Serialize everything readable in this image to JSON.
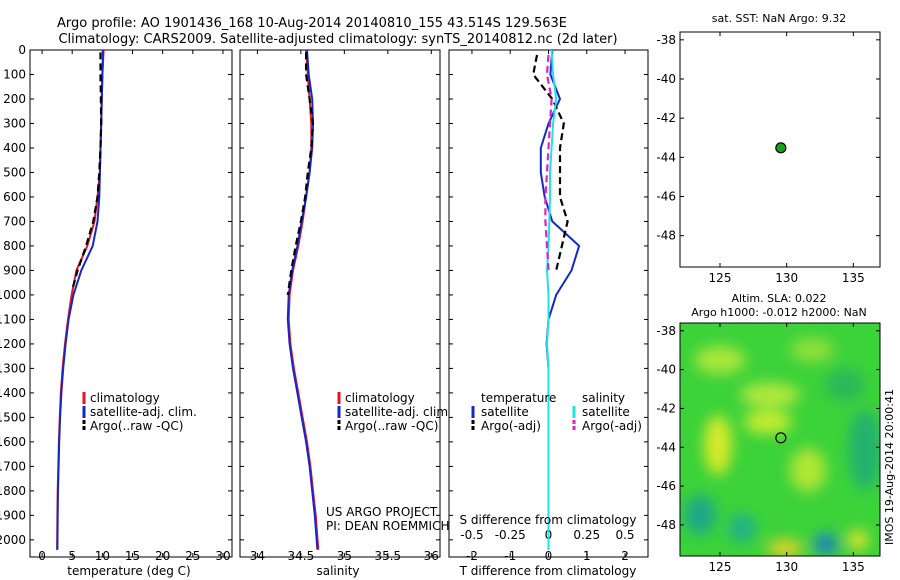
{
  "title_line1": "Argo profile: AO 1901436_168 10-Aug-2014 20140810_155 43.514S 129.563E",
  "title_line2": "Climatology: CARS2009. Satellite-adjusted climatology: synTS_20140812.nc (2d later)",
  "project_line1": "US ARGO PROJECT",
  "project_line2": "PI: DEAN ROEMMICH",
  "sst_title": "sat. SST: NaN Argo: 9.32",
  "sla_title_line1": "Altim. SLA: 0.022",
  "sla_title_line2": "Argo h1000: -0.012 h2000: NaN",
  "imos_stamp": "IMOS 19-Aug-2014 20:00:41",
  "colors": {
    "climatology": "#e8141c",
    "satellite": "#1428c8",
    "argo": "#000000",
    "sal_satellite": "#22e0e6",
    "sal_argo": "#e020d0",
    "float_marker": "#1aa01a"
  },
  "chart_data": [
    {
      "type": "line",
      "name": "temperature profile",
      "xlabel": "temperature (deg C)",
      "ylabel": "",
      "xlim": [
        -2,
        31.5
      ],
      "ylim": [
        0,
        2070
      ],
      "y_reversed": true,
      "x_ticks": [
        0,
        5,
        10,
        15,
        20,
        25,
        30
      ],
      "y_ticks": [
        0,
        100,
        200,
        300,
        400,
        500,
        600,
        700,
        800,
        900,
        1000,
        1100,
        1200,
        1300,
        1400,
        1500,
        1600,
        1700,
        1800,
        1900,
        2000
      ],
      "legend": [
        "climatology",
        "satellite-adj. clim.",
        "Argo(..raw -QC)"
      ],
      "legend_position": "lower-middle",
      "series": [
        {
          "name": "climatology",
          "color_key": "climatology",
          "dash": "solid",
          "x": [
            10.2,
            10.0,
            9.9,
            9.8,
            9.7,
            9.6,
            9.2,
            8.7,
            7.5,
            5.7,
            4.9,
            4.3,
            3.8,
            3.4,
            3.1,
            2.95,
            2.8,
            2.7,
            2.6,
            2.55,
            2.5
          ],
          "y": [
            0,
            100,
            200,
            300,
            400,
            500,
            600,
            700,
            800,
            900,
            1000,
            1100,
            1200,
            1300,
            1400,
            1500,
            1600,
            1700,
            1800,
            1900,
            2040
          ]
        },
        {
          "name": "satellite-adj. clim.",
          "color_key": "satellite",
          "dash": "solid",
          "x": [
            10.1,
            10.0,
            9.9,
            9.8,
            9.7,
            9.6,
            9.5,
            9.2,
            8.4,
            6.5,
            5.2,
            4.4,
            3.9,
            3.5,
            3.2,
            3.0,
            2.85,
            2.75,
            2.65,
            2.6,
            2.55
          ],
          "y": [
            0,
            100,
            200,
            300,
            400,
            500,
            600,
            700,
            800,
            900,
            1000,
            1100,
            1200,
            1300,
            1400,
            1500,
            1600,
            1700,
            1800,
            1900,
            2040
          ]
        },
        {
          "name": "Argo(..raw -QC)",
          "color_key": "argo",
          "dash": "dash",
          "x": [
            9.7,
            9.7,
            9.75,
            9.8,
            9.7,
            9.5,
            9.2,
            8.5,
            7.3,
            5.9,
            5.0
          ],
          "y": [
            10,
            100,
            200,
            300,
            400,
            500,
            600,
            700,
            800,
            900,
            980
          ]
        }
      ]
    },
    {
      "type": "line",
      "name": "salinity profile",
      "xlabel": "salinity",
      "ylabel": "",
      "xlim": [
        33.8,
        36.1
      ],
      "ylim": [
        0,
        2070
      ],
      "y_reversed": true,
      "x_ticks": [
        34,
        34.5,
        35,
        35.5,
        36
      ],
      "legend": [
        "climatology",
        "satellite-adj. clim.",
        "Argo(..raw -QC)"
      ],
      "legend_position": "lower-middle",
      "series": [
        {
          "name": "climatology",
          "color_key": "climatology",
          "dash": "solid",
          "x": [
            34.56,
            34.58,
            34.6,
            34.62,
            34.62,
            34.6,
            34.56,
            34.52,
            34.47,
            34.41,
            34.37,
            34.36,
            34.38,
            34.42,
            34.47,
            34.52,
            34.57,
            34.61,
            34.64,
            34.67,
            34.7
          ],
          "y": [
            0,
            100,
            200,
            300,
            400,
            500,
            600,
            700,
            800,
            900,
            1000,
            1100,
            1200,
            1300,
            1400,
            1500,
            1600,
            1700,
            1800,
            1900,
            2040
          ]
        },
        {
          "name": "satellite-adj. clim.",
          "color_key": "satellite",
          "dash": "solid",
          "x": [
            34.57,
            34.59,
            34.63,
            34.64,
            34.63,
            34.6,
            34.56,
            34.51,
            34.46,
            34.4,
            34.36,
            34.35,
            34.37,
            34.41,
            34.46,
            34.51,
            34.56,
            34.6,
            34.63,
            34.66,
            34.69
          ],
          "y": [
            0,
            100,
            200,
            300,
            400,
            500,
            600,
            700,
            800,
            900,
            1000,
            1100,
            1200,
            1300,
            1400,
            1500,
            1600,
            1700,
            1800,
            1900,
            2040
          ]
        },
        {
          "name": "Argo(..raw -QC)",
          "color_key": "argo",
          "dash": "dash",
          "x": [
            34.56,
            34.56,
            34.6,
            34.64,
            34.62,
            34.58,
            34.55,
            34.5,
            34.44,
            34.39,
            34.35
          ],
          "y": [
            10,
            100,
            200,
            300,
            400,
            500,
            600,
            700,
            800,
            900,
            1000
          ]
        }
      ]
    },
    {
      "type": "line",
      "name": "difference from climatology",
      "xlabel": "T difference from climatology",
      "top_xlabel": "S difference from climatology",
      "xlim": [
        -2.6,
        2.6
      ],
      "top_xlim": [
        -0.65,
        0.65
      ],
      "ylim": [
        0,
        2070
      ],
      "y_reversed": true,
      "x_ticks": [
        -2,
        -1,
        0,
        1,
        2
      ],
      "top_x_ticks": [
        -0.5,
        -0.25,
        0,
        0.25,
        0.5
      ],
      "legend_headers": [
        "temperature",
        "salinity"
      ],
      "legend": [
        "satellite",
        "Argo(-adj)",
        "satellite",
        "Argo(-adj)"
      ],
      "series": [
        {
          "name": "satellite",
          "group": "temperature",
          "color_key": "satellite",
          "dash": "solid",
          "axis": "T",
          "x": [
            0.1,
            0.05,
            0.3,
            0.0,
            -0.2,
            -0.2,
            -0.1,
            0.1,
            0.8,
            0.6,
            0.2,
            0.0,
            -0.05,
            0.0,
            0.0,
            0.0,
            0.0,
            0.0,
            0.0,
            0.0,
            0.0
          ],
          "y": [
            0,
            100,
            200,
            300,
            400,
            500,
            600,
            700,
            800,
            900,
            1000,
            1100,
            1200,
            1300,
            1400,
            1500,
            1600,
            1700,
            1800,
            1900,
            2040
          ]
        },
        {
          "name": "Argo(-adj)",
          "group": "temperature",
          "color_key": "argo",
          "dash": "dash",
          "axis": "T",
          "x": [
            -0.3,
            -0.4,
            0.1,
            0.4,
            0.3,
            0.3,
            0.3,
            0.5,
            0.35,
            0.2
          ],
          "y": [
            20,
            100,
            200,
            300,
            400,
            500,
            600,
            700,
            800,
            900
          ]
        },
        {
          "name": "satellite",
          "group": "salinity",
          "color_key": "sal_satellite",
          "dash": "solid",
          "axis": "S",
          "x": [
            0.02,
            0.03,
            0.05,
            0.03,
            0.02,
            0.01,
            0.01,
            0.005,
            0.0,
            -0.01,
            0.0,
            0.0,
            -0.01,
            0.0,
            0.0,
            0.0,
            0.0,
            0.0,
            0.0,
            0.0,
            0.0
          ],
          "y": [
            0,
            100,
            200,
            300,
            400,
            500,
            600,
            700,
            800,
            900,
            1000,
            1100,
            1200,
            1300,
            1400,
            1500,
            1600,
            1700,
            1800,
            1900,
            2040
          ]
        },
        {
          "name": "Argo(-adj)",
          "group": "salinity",
          "color_key": "sal_argo",
          "dash": "dash",
          "axis": "S",
          "x": [
            0.0,
            -0.01,
            0.02,
            0.01,
            0.0,
            -0.01,
            -0.02,
            -0.02,
            -0.01,
            0.0
          ],
          "y": [
            20,
            100,
            200,
            300,
            400,
            500,
            600,
            700,
            800,
            900
          ]
        }
      ]
    },
    {
      "type": "scatter",
      "name": "satellite SST map",
      "xlim": [
        122,
        137
      ],
      "ylim": [
        -49.6,
        -37.6
      ],
      "x_ticks": [
        125,
        130,
        135
      ],
      "y_ticks": [
        -38,
        -40,
        -42,
        -44,
        -46,
        -48
      ],
      "points": [
        {
          "x": 129.563,
          "y": -43.514
        }
      ]
    },
    {
      "type": "heatmap",
      "name": "altimetry SLA map",
      "xlim": [
        122,
        137
      ],
      "ylim": [
        -49.6,
        -37.6
      ],
      "x_ticks": [
        125,
        130,
        135
      ],
      "y_ticks": [
        -38,
        -40,
        -42,
        -44,
        -46,
        -48
      ],
      "points": [
        {
          "x": 129.563,
          "y": -43.514
        }
      ]
    }
  ]
}
